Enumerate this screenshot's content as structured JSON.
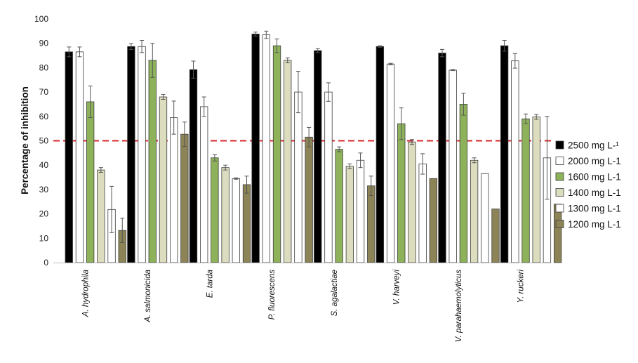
{
  "chart_data": {
    "type": "bar",
    "ylabel": "Percentage of inhibition",
    "xlabel": "",
    "ylim": [
      0,
      100
    ],
    "yticks": [
      "0",
      "10",
      "20",
      "30",
      "40",
      "50",
      "60",
      "70",
      "80",
      "90",
      "100"
    ],
    "grid": false,
    "legend_position": "right",
    "reference_line": {
      "value": 50,
      "color": "#d62728",
      "style": "dashed"
    },
    "categories": [
      "A. hydrophila",
      "A. salmonicida",
      "E. tarda",
      "P. fluorescens",
      "S. agalactiae",
      "V. harveyi",
      "V. parahaemolyticus",
      "Y. ruckeri"
    ],
    "series": [
      {
        "name": "2500 mg L-¹",
        "color": "#000000",
        "values": [
          86.5,
          88.7,
          79.2,
          93.8,
          87.0,
          88.7,
          86.0,
          89.0
        ],
        "errors": [
          2.0,
          1.2,
          3.5,
          0.8,
          0.8,
          0.3,
          1.5,
          2.2
        ]
      },
      {
        "name": "2000 mg L-1",
        "color": "#ffffff",
        "values": [
          86.5,
          88.7,
          64.0,
          93.5,
          70.0,
          81.5,
          79.0,
          82.8
        ],
        "errors": [
          2.0,
          2.5,
          4.0,
          1.5,
          3.8,
          0.3,
          0.2,
          3.0
        ]
      },
      {
        "name": "1600 mg L-1",
        "color": "#8db25a",
        "values": [
          66.0,
          83.0,
          43.0,
          89.0,
          46.5,
          57.0,
          65.0,
          59.0
        ],
        "errors": [
          6.5,
          7.0,
          1.3,
          2.8,
          1.0,
          6.5,
          4.5,
          2.0
        ]
      },
      {
        "name": "1400 mg L-1",
        "color": "#dcdcbe",
        "values": [
          38.0,
          68.0,
          39.0,
          83.0,
          39.5,
          49.5,
          42.0,
          59.8
        ],
        "errors": [
          1.0,
          1.0,
          1.0,
          1.0,
          1.0,
          1.0,
          1.0,
          1.0
        ]
      },
      {
        "name": "1300 mg L-1",
        "color": "#ffffff",
        "values": [
          21.8,
          59.5,
          34.5,
          70.0,
          42.0,
          40.5,
          36.5,
          43.0
        ],
        "errors": [
          9.5,
          6.8,
          0.3,
          8.5,
          3.0,
          4.2,
          0.0,
          17.0
        ]
      },
      {
        "name": "1200 mg L-1",
        "color": "#8c8457",
        "values": [
          13.2,
          52.7,
          32.0,
          51.5,
          31.5,
          34.5,
          22.0,
          24.0
        ],
        "errors": [
          5.0,
          5.0,
          3.5,
          4.0,
          4.0,
          0.0,
          0.0,
          0.0
        ]
      }
    ]
  }
}
